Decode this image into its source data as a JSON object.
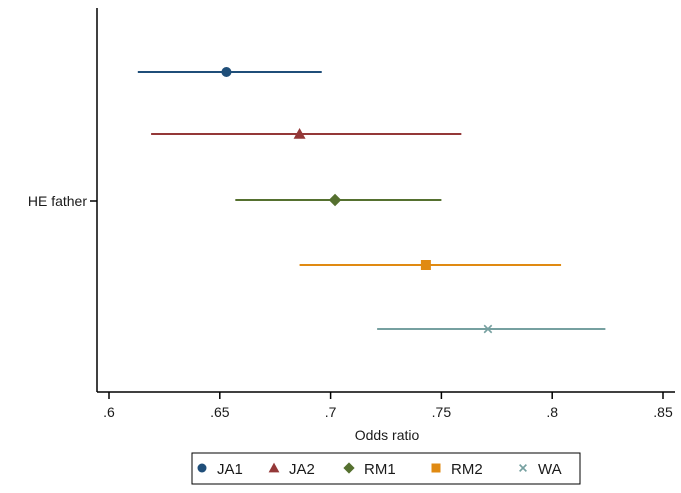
{
  "chart_data": {
    "type": "scatter",
    "subtype": "forest-plot",
    "title": "",
    "xlabel": "Odds ratio",
    "ylabel": "",
    "category_label": "HE father",
    "xlim": [
      0.6,
      0.85
    ],
    "x_ticks": [
      0.6,
      0.65,
      0.7,
      0.75,
      0.8,
      0.85
    ],
    "x_tick_labels": [
      ".6",
      ".65",
      ".7",
      ".75",
      ".8",
      ".85"
    ],
    "grid": false,
    "legend_position": "bottom",
    "series": [
      {
        "name": "JA1",
        "estimate": 0.653,
        "lower": 0.613,
        "upper": 0.696,
        "color": "#1f4e79",
        "marker": "circle"
      },
      {
        "name": "JA2",
        "estimate": 0.686,
        "lower": 0.619,
        "upper": 0.759,
        "color": "#943838",
        "marker": "triangle"
      },
      {
        "name": "RM1",
        "estimate": 0.702,
        "lower": 0.657,
        "upper": 0.75,
        "color": "#55702f",
        "marker": "diamond"
      },
      {
        "name": "RM2",
        "estimate": 0.743,
        "lower": 0.686,
        "upper": 0.804,
        "color": "#e08a12",
        "marker": "square"
      },
      {
        "name": "WA",
        "estimate": 0.771,
        "lower": 0.721,
        "upper": 0.824,
        "color": "#76a0a0",
        "marker": "x"
      }
    ]
  }
}
